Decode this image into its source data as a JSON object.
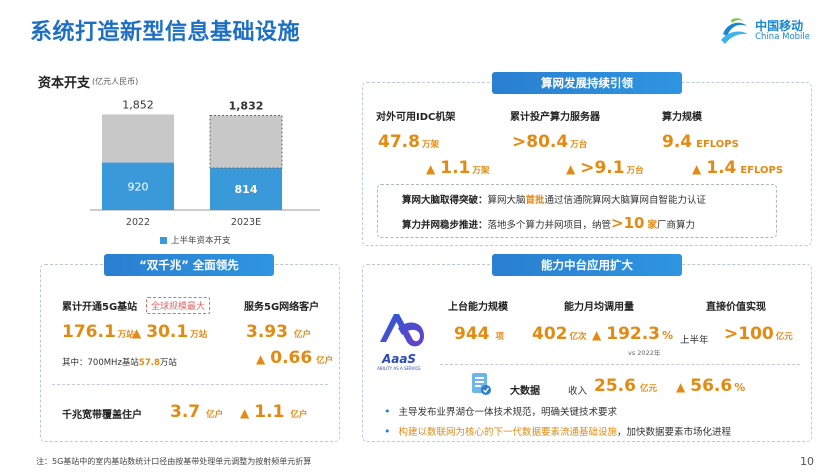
{
  "page": {
    "title": "系统打造新型信息基础设施",
    "page_number": "10",
    "footnote": "注：5G基站中的室内基站数统计口径由按基带处理单元调整为按射频单元折算"
  },
  "logo": {
    "cn": "中国移动",
    "en": "China Mobile",
    "color": "#1a86d0"
  },
  "capex": {
    "title": "资本开支",
    "unit": "(亿元人民币)",
    "legend": "上半年资本开支"
  },
  "chart_data": {
    "type": "bar",
    "title": "资本开支",
    "ylabel": "(亿元人民币)",
    "categories": [
      "2022",
      "2023E"
    ],
    "series": [
      {
        "name": "上半年资本开支",
        "values": [
          920,
          814
        ],
        "color": "#3a9ad9"
      },
      {
        "name": "",
        "values": [
          932,
          1018
        ],
        "color": "#c8c8c8"
      }
    ],
    "totals": [
      1852,
      1832
    ],
    "total_labels": [
      "1,852",
      "1,832"
    ],
    "ylim": [
      0,
      1900
    ],
    "legend_position": "bottom"
  },
  "compute": {
    "header": "算网发展持续引领",
    "metrics": [
      {
        "label": "对外可用IDC机架",
        "value": "47.8",
        "unit": "万架",
        "delta": "1.1",
        "delta_unit": "万架"
      },
      {
        "label": "累计投产算力服务器",
        "value": ">80.4",
        "unit": "万台",
        "delta": ">9.1",
        "delta_unit": "万台"
      },
      {
        "label": "算力规模",
        "value": "9.4",
        "unit": "EFLOPS",
        "delta": "1.4",
        "delta_unit": "EFLOPS"
      }
    ],
    "line1": {
      "k": "算网大脑取得突破：",
      "pre": "算网大脑",
      "hl": "首批",
      "post": "通过信通院算网大脑算网自智能力认证"
    },
    "line2": {
      "k": "算力并网稳步推进：",
      "pre": "落地多个算力并网项目，纳管 ",
      "hl_num": ">10",
      "hl_unit": "家",
      "post": " 厂商算力"
    }
  },
  "gigabit": {
    "header": "“双千兆” 全面领先",
    "label_5g": "累计开通5G基站",
    "tag": "全球规模最大",
    "label_5g_clients": "服务5G网络客户",
    "bs_value": "176.1",
    "bs_unit": "万站",
    "bs_delta": "30.1",
    "bs_delta_unit": "万站",
    "clients_value": "3.93",
    "clients_unit": "亿户",
    "clients_delta": "0.66",
    "clients_delta_unit": "亿户",
    "note_pre": "其中：700MHz基站",
    "note_val": "57.8",
    "note_post": "万站",
    "broadband_label": "千兆宽带覆盖住户",
    "bb_value": "3.7",
    "bb_unit": "亿户",
    "bb_delta": "1.1",
    "bb_delta_unit": "亿户"
  },
  "platform": {
    "header": "能力中台应用扩大",
    "aaas_name": "AaaS",
    "aaas_sub": "ABILITY AS A SERVICE",
    "col1": "上台能力规模",
    "col2": "能力月均调用量",
    "col3": "直接价值实现",
    "v1": "944",
    "u1": "项",
    "v2": "402",
    "u2": "亿次",
    "v2_delta": "192.3",
    "v2_delta_unit": "%",
    "v2_vs": "vs 2022年",
    "v3_pre": "上半年",
    "v3": ">100",
    "u3": "亿元",
    "bigdata_label": "大数据",
    "income_label": "收入",
    "income_value": "25.6",
    "income_unit": "亿元",
    "income_delta": "56.6",
    "income_delta_unit": "%",
    "bullet1": "主导发布业界湖仓一体技术规范，明确关键技术要求",
    "bullet2_hl": "构建以数联网为核心的下一代数据要素流通基础设施",
    "bullet2_post": "，加快数据要素市场化进程"
  }
}
